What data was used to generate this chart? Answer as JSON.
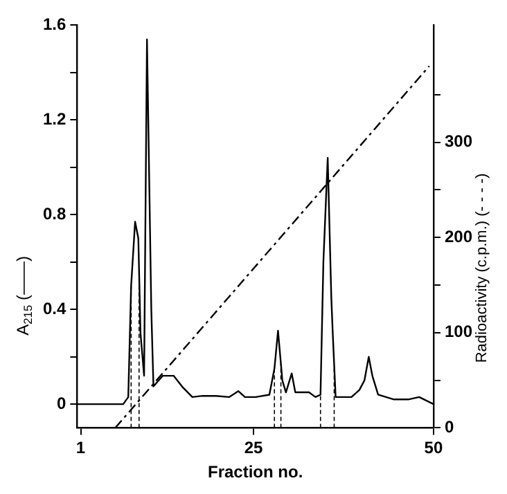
{
  "chart_data": {
    "type": "line",
    "xlabel": "Fraction no.",
    "ylabel": "A$_{215}$ (——)",
    "y2label": "Radioactivity (c.p.m.) (- - - -)",
    "xlim": [
      0.5,
      50
    ],
    "xticks": [
      1,
      25,
      50
    ],
    "ylim": [
      -0.1,
      1.6
    ],
    "yticks": [
      0,
      {
        "value": 0.2,
        "label": null
      },
      0.4,
      {
        "value": 0.6,
        "label": null
      },
      0.8,
      {
        "value": 1.0,
        "label": null
      },
      1.2,
      {
        "value": 1.4,
        "label": null
      },
      1.6
    ],
    "y2lim": [
      0,
      423
    ],
    "y2ticks": [
      0,
      {
        "value": 50,
        "label": null
      },
      100,
      {
        "value": 150,
        "label": null
      },
      200,
      {
        "value": 250,
        "label": null
      },
      300,
      {
        "value": 350,
        "label": null
      }
    ],
    "grid": false,
    "legend": false,
    "marker": "none",
    "series": [
      {
        "color": "#000000",
        "line_style": "solid",
        "x": [
          0.5,
          6.9,
          7.6,
          8.0,
          8.55,
          9.0,
          9.3,
          9.8,
          10.2,
          10.8,
          11.1,
          12.4,
          13.9,
          15.2,
          16.5,
          17.9,
          19.8,
          21.6,
          22.9,
          23.8,
          25.3,
          27.2,
          27.9,
          28.4,
          29.0,
          29.5,
          30.3,
          30.8,
          31.6,
          32.7,
          33.6,
          34.3,
          34.7,
          35.3,
          35.8,
          36.0,
          36.4,
          37.3,
          38.6,
          39.7,
          40.4,
          41.0,
          41.5,
          42.3,
          43.4,
          44.5,
          46.5,
          48.0,
          50
        ],
        "values": [
          0,
          0,
          0.03,
          0.5,
          0.77,
          0.7,
          0.3,
          0.12,
          1.54,
          0.4,
          0.075,
          0.12,
          0.12,
          0.07,
          0.03,
          0.035,
          0.035,
          0.03,
          0.055,
          0.03,
          0.03,
          0.04,
          0.15,
          0.31,
          0.1,
          0.05,
          0.13,
          0.05,
          0.05,
          0.05,
          0.03,
          0.04,
          0.6,
          1.04,
          0.45,
          0.3,
          0.03,
          0.03,
          0.03,
          0.06,
          0.1,
          0.2,
          0.12,
          0.04,
          0.03,
          0.02,
          0.02,
          0.03,
          0
        ]
      },
      {
        "color": "#000000",
        "line_style": "dashed",
        "axis": "y2",
        "x": [
          5.8,
          49.4
        ],
        "values": [
          0,
          380
        ]
      }
    ],
    "ref_lines": [
      {
        "axis": "x",
        "value": 8.0,
        "line_style": "dashed"
      },
      {
        "axis": "x",
        "value": 9.1,
        "line_style": "dashed"
      },
      {
        "axis": "x",
        "value": 27.9,
        "line_style": "dashed"
      },
      {
        "axis": "x",
        "value": 28.8,
        "line_style": "dashed"
      },
      {
        "axis": "x",
        "value": 34.3,
        "line_style": "dashed"
      },
      {
        "axis": "x",
        "value": 36.2,
        "line_style": "dashed"
      }
    ]
  }
}
